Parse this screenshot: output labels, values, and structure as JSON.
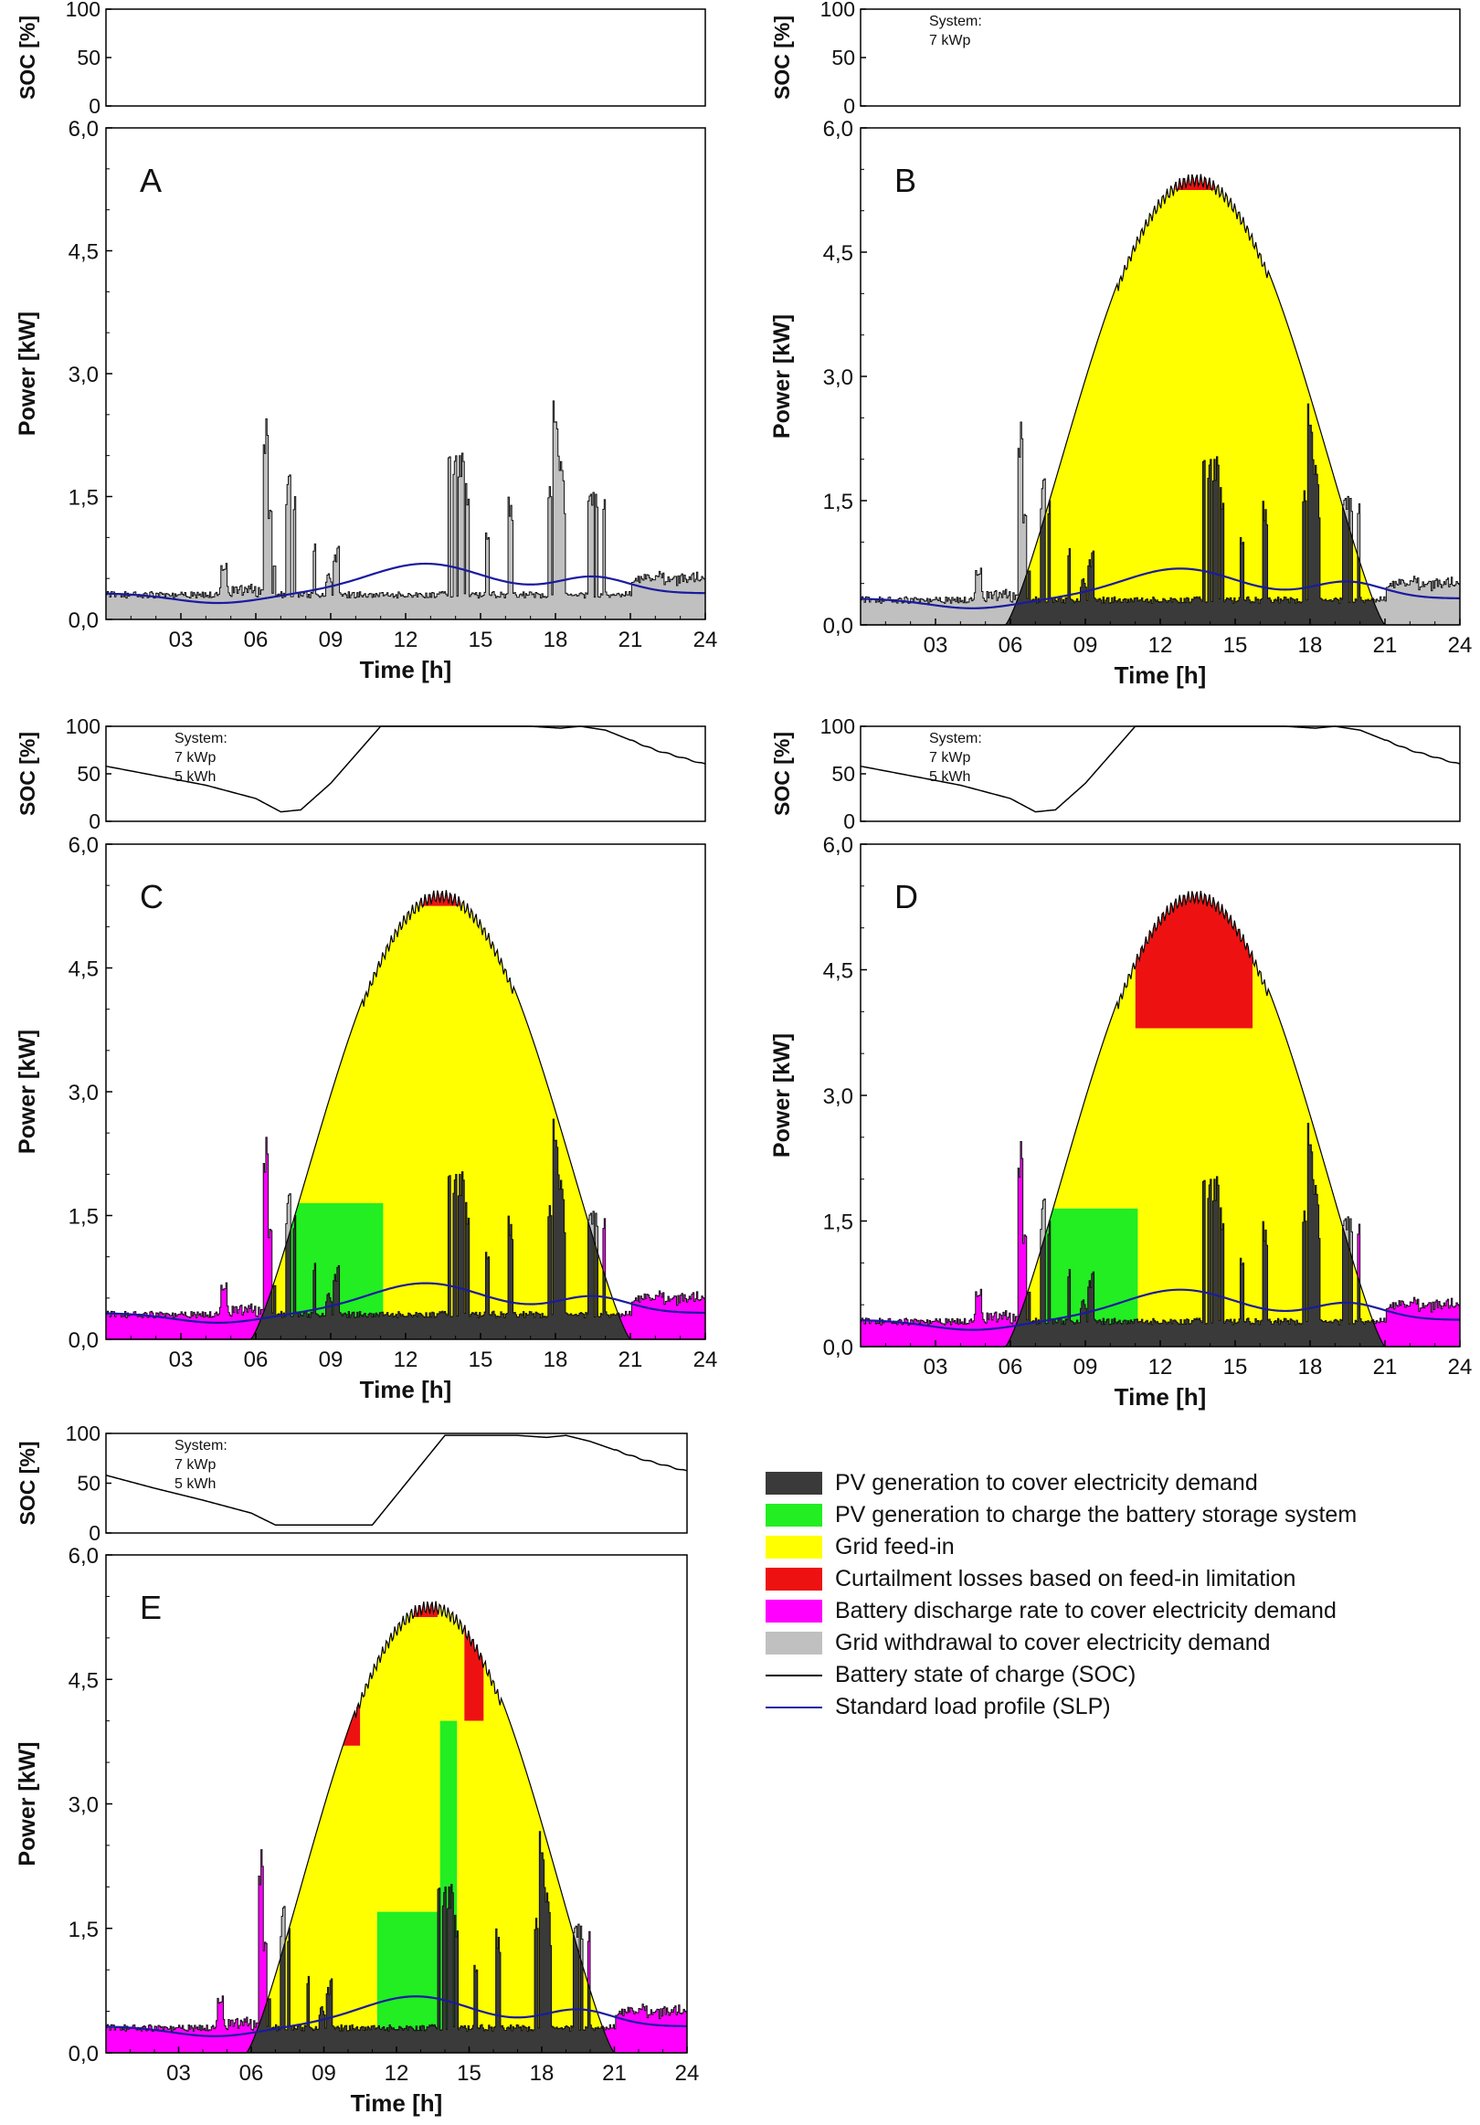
{
  "chart_data": [
    {
      "panel": "A",
      "type": "area",
      "soc_axis_label": "SOC [%]",
      "soc_ticks": [
        "100",
        "50",
        "0"
      ],
      "soc_range": [
        0,
        100
      ],
      "system_text": [],
      "soc": [],
      "ylabel": "Power [kW]",
      "y_ticks": [
        "6,0",
        "4,5",
        "3,0",
        "1,5",
        "0,0"
      ],
      "ylim": [
        0,
        6
      ],
      "xlabel": "Time [h]",
      "x_ticks": [
        "03",
        "06",
        "09",
        "12",
        "15",
        "18",
        "21",
        "24"
      ],
      "xlim": [
        0,
        24
      ],
      "pv": {
        "peak": 0
      },
      "charge_windows": [],
      "curtail_windows": []
    },
    {
      "panel": "B",
      "type": "area",
      "soc_axis_label": "SOC [%]",
      "soc_ticks": [
        "100",
        "50",
        "0"
      ],
      "soc_range": [
        0,
        100
      ],
      "system_text": [
        "System:",
        "7 kWp"
      ],
      "soc": [],
      "ylabel": "Power [kW]",
      "y_ticks": [
        "6,0",
        "4,5",
        "3,0",
        "1,5",
        "0,0"
      ],
      "ylim": [
        0,
        6
      ],
      "xlabel": "Time [h]",
      "x_ticks": [
        "03",
        "06",
        "09",
        "12",
        "15",
        "18",
        "21",
        "24"
      ],
      "xlim": [
        0,
        24
      ],
      "pv": {
        "start": 5.8,
        "end": 21.0,
        "peak": 5.45,
        "peak_time": 13.3
      },
      "charge_windows": [],
      "curtail_windows": [
        {
          "from": 12.6,
          "to": 14.2,
          "cap": 5.25
        }
      ]
    },
    {
      "panel": "C",
      "type": "area",
      "soc_axis_label": "SOC [%]",
      "soc_ticks": [
        "100",
        "50",
        "0"
      ],
      "soc_range": [
        0,
        100
      ],
      "system_text": [
        "System:",
        "7 kWp",
        "5 kWh"
      ],
      "soc": [
        [
          0,
          58
        ],
        [
          2,
          48
        ],
        [
          4,
          38
        ],
        [
          6,
          24
        ],
        [
          7,
          10
        ],
        [
          7.8,
          12
        ],
        [
          9,
          40
        ],
        [
          11,
          100
        ],
        [
          17,
          100
        ],
        [
          18.2,
          98
        ],
        [
          19,
          100
        ],
        [
          20,
          96
        ],
        [
          22,
          75
        ],
        [
          24,
          60
        ]
      ],
      "ylabel": "Power [kW]",
      "y_ticks": [
        "6,0",
        "4,5",
        "3,0",
        "1,5",
        "0,0"
      ],
      "ylim": [
        0,
        6
      ],
      "xlabel": "Time [h]",
      "x_ticks": [
        "03",
        "06",
        "09",
        "12",
        "15",
        "18",
        "21",
        "24"
      ],
      "xlim": [
        0,
        24
      ],
      "pv": {
        "start": 5.8,
        "end": 21.0,
        "peak": 5.45,
        "peak_time": 13.3
      },
      "charge_windows": [
        {
          "from": 7.2,
          "to": 11.1,
          "cap": 1.65
        }
      ],
      "curtail_windows": [
        {
          "from": 12.6,
          "to": 14.2,
          "cap": 5.25
        }
      ]
    },
    {
      "panel": "D",
      "type": "area",
      "soc_axis_label": "SOC [%]",
      "soc_ticks": [
        "100",
        "50",
        "0"
      ],
      "soc_range": [
        0,
        100
      ],
      "system_text": [
        "System:",
        "7 kWp",
        "5 kWh"
      ],
      "soc": [
        [
          0,
          58
        ],
        [
          2,
          48
        ],
        [
          4,
          38
        ],
        [
          6,
          24
        ],
        [
          7,
          10
        ],
        [
          7.8,
          12
        ],
        [
          9,
          40
        ],
        [
          11,
          100
        ],
        [
          17,
          100
        ],
        [
          18.2,
          98
        ],
        [
          19,
          100
        ],
        [
          20,
          96
        ],
        [
          22,
          75
        ],
        [
          24,
          60
        ]
      ],
      "ylabel": "Power [kW]",
      "y_ticks": [
        "6,0",
        "4,5",
        "3,0",
        "1,5",
        "0,0"
      ],
      "ylim": [
        0,
        6
      ],
      "xlabel": "Time [h]",
      "x_ticks": [
        "03",
        "06",
        "09",
        "12",
        "15",
        "18",
        "21",
        "24"
      ],
      "xlim": [
        0,
        24
      ],
      "pv": {
        "start": 5.8,
        "end": 21.0,
        "peak": 5.45,
        "peak_time": 13.3
      },
      "charge_windows": [
        {
          "from": 7.2,
          "to": 11.1,
          "cap": 1.65
        }
      ],
      "curtail_windows": [
        {
          "from": 11.0,
          "to": 15.7,
          "cap": 3.8
        }
      ]
    },
    {
      "panel": "E",
      "type": "area",
      "soc_axis_label": "SOC [%]",
      "soc_ticks": [
        "100",
        "50",
        "0"
      ],
      "soc_range": [
        0,
        100
      ],
      "system_text": [
        "System:",
        "7 kWp",
        "5 kWh"
      ],
      "soc": [
        [
          0,
          58
        ],
        [
          2,
          45
        ],
        [
          4,
          33
        ],
        [
          6,
          20
        ],
        [
          7,
          8
        ],
        [
          11,
          8
        ],
        [
          14,
          98
        ],
        [
          17,
          98
        ],
        [
          18.2,
          96
        ],
        [
          19,
          98
        ],
        [
          20,
          92
        ],
        [
          22,
          75
        ],
        [
          24,
          62
        ]
      ],
      "ylabel": "Power [kW]",
      "y_ticks": [
        "6,0",
        "4,5",
        "3,0",
        "1,5",
        "0,0"
      ],
      "ylim": [
        0,
        6
      ],
      "xlabel": "Time [h]",
      "x_ticks": [
        "03",
        "06",
        "09",
        "12",
        "15",
        "18",
        "21",
        "24"
      ],
      "xlim": [
        0,
        24
      ],
      "pv": {
        "start": 5.8,
        "end": 21.0,
        "peak": 5.45,
        "peak_time": 13.3
      },
      "charge_windows": [
        {
          "from": 11.2,
          "to": 13.8,
          "cap": 1.7
        },
        {
          "from": 13.8,
          "to": 14.5,
          "cap": 4.0
        }
      ],
      "curtail_windows": [
        {
          "from": 9.5,
          "to": 10.5,
          "cap": 3.7
        },
        {
          "from": 12.7,
          "to": 13.7,
          "cap": 5.25
        },
        {
          "from": 14.8,
          "to": 15.6,
          "cap": 4.0
        }
      ]
    }
  ],
  "legend": [
    {
      "label": "PV generation to cover electricity demand",
      "color": "#3a3a3a",
      "kind": "box"
    },
    {
      "label": "PV generation to charge the battery storage system",
      "color": "#22ee22",
      "kind": "box"
    },
    {
      "label": "Grid feed-in",
      "color": "#ffff00",
      "kind": "box"
    },
    {
      "label": "Curtailment losses based on feed-in limitation",
      "color": "#ee1111",
      "kind": "box"
    },
    {
      "label": "Battery discharge rate to cover electricity demand",
      "color": "#ff00ff",
      "kind": "box"
    },
    {
      "label": "Grid withdrawal to cover electricity demand",
      "color": "#c0c0c0",
      "kind": "box"
    },
    {
      "label": "Battery state of charge (SOC)",
      "color": "#000000",
      "kind": "line"
    },
    {
      "label": "Standard load profile (SLP)",
      "color": "#1a1aa0",
      "kind": "line"
    }
  ],
  "colors": {
    "pv_self": "#3a3a3a",
    "charge": "#22ee22",
    "feed": "#ffff00",
    "curtail": "#ee1111",
    "discharge": "#ff00ff",
    "grid": "#c0c0c0",
    "soc_line": "#000000",
    "slp_line": "#1a1aa0"
  }
}
